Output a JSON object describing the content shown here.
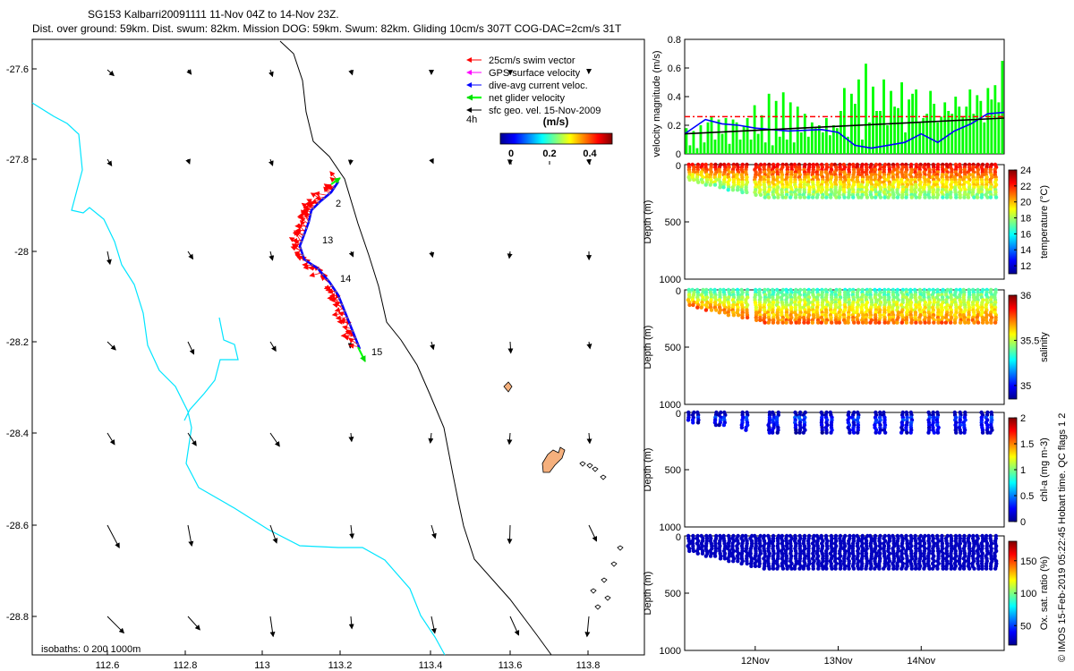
{
  "header": {
    "line1": "SG153 Kalbarri20091111 11-Nov 04Z to 14-Nov 23Z.",
    "line2": "Dist. over ground: 59km. Dist. swum: 82km. Mission DOG: 59km. Swum: 82km. Gliding 10cm/s 307T COG-DAC=2cm/s 31T"
  },
  "colors": {
    "coast": "#00e5ff",
    "shelf_line": "#000000",
    "swim_vector": "#ff0000",
    "gps_velocity": "#ff00ff",
    "dac": "#0000ff",
    "net_velocity": "#00ff00",
    "geo_vel": "#000000",
    "island_fill": "#f5b07d",
    "mean_line": "#ff0000"
  },
  "map": {
    "xticks": [
      "112.6",
      "112.8",
      "113",
      "113.2",
      "113.4",
      "113.6",
      "113.8"
    ],
    "yticks": [
      "-27.6",
      "-27.8",
      "-28",
      "-28.2",
      "-28.4",
      "-28.6",
      "-28.8"
    ],
    "isobaths_label": "isobaths: 0   200  1000m",
    "day_labels": [
      "2",
      "13",
      "14",
      "15"
    ],
    "legend": {
      "items": [
        "25cm/s swim vector",
        "GPS surface velocity",
        "dive-avg current veloc.",
        "net glider velocity",
        "sfc geo. vel. 15-Nov-2009"
      ],
      "colorbar_title": "(m/s)",
      "colorbar_prefix": "4h",
      "colorbar_ticks": [
        "0",
        "0.2",
        "0.4"
      ]
    }
  },
  "side": {
    "copyright": "© IMOS 15-Feb-2019 05:22:45 Hobart time. QC flags 1  2",
    "time_ticks": [
      "12Nov",
      "13Nov",
      "14Nov"
    ]
  },
  "chart_data": [
    {
      "type": "bar",
      "ylabel": "velocity magnitude (m/s)",
      "ylim": [
        0,
        0.8
      ],
      "yticks": [
        "0",
        "0.2",
        "0.4",
        "0.6",
        "0.8"
      ],
      "x_range_days": [
        11.15,
        15.0
      ],
      "series": [
        {
          "name": "",
          "kind": "bars",
          "values": [
            0.18,
            0.06,
            0.16,
            0.04,
            0.2,
            0.08,
            0.22,
            0.26,
            0.1,
            0.24,
            0.14,
            0.25,
            0.07,
            0.24,
            0.22,
            0.1,
            0.19,
            0.25,
            0.1,
            0.34,
            0.14,
            0.27,
            0.08,
            0.42,
            0.06,
            0.37,
            0.12,
            0.43,
            0.1,
            0.36,
            0.08,
            0.33,
            0.15,
            0.28,
            0.12,
            0.22,
            0.18,
            0.2,
            0.15,
            0.25,
            0.13,
            0.2,
            0.18,
            0.3,
            0.46,
            0.12,
            0.42,
            0.35,
            0.52,
            0.1,
            0.63,
            0.22,
            0.47,
            0.3,
            0.3,
            0.52,
            0.2,
            0.44,
            0.33,
            0.32,
            0.5,
            0.15,
            0.38,
            0.42,
            0.45,
            0.22,
            0.25,
            0.28,
            0.44,
            0.35,
            0.22,
            0.26,
            0.36,
            0.3,
            0.28,
            0.4,
            0.33,
            0.26,
            0.33,
            0.45,
            0.28,
            0.41,
            0.37,
            0.22,
            0.46,
            0.38,
            0.48,
            0.36,
            0.65
          ]
        },
        {
          "name": "",
          "kind": "line",
          "x": [
            11.15,
            11.4,
            11.6,
            11.8,
            12.0,
            12.4,
            12.8,
            13.0,
            13.2,
            13.4,
            13.6,
            13.8,
            14.0,
            14.2,
            14.4,
            14.6,
            14.8,
            15.0
          ],
          "values": [
            0.14,
            0.24,
            0.21,
            0.2,
            0.18,
            0.16,
            0.17,
            0.15,
            0.06,
            0.04,
            0.06,
            0.08,
            0.14,
            0.08,
            0.16,
            0.21,
            0.28,
            0.29
          ]
        },
        {
          "name": "",
          "kind": "line",
          "x": [
            11.15,
            15.0
          ],
          "values": [
            0.14,
            0.25
          ]
        },
        {
          "name": "",
          "kind": "dashed",
          "x": [
            11.15,
            15.0
          ],
          "values": [
            0.26,
            0.26
          ]
        }
      ]
    },
    {
      "type": "scatter",
      "ylabel": "Depth (m)",
      "ylim": [
        0,
        1000
      ],
      "yticks": [
        "0",
        "500",
        "1000"
      ],
      "colorbar_label": "temperature (°C)",
      "colorbar_ticks": [
        "24",
        "22",
        "20",
        "18",
        "16",
        "14",
        "12"
      ],
      "colorbar_range": [
        11,
        24
      ],
      "surface_value": 22.5,
      "deep_value": 17.0
    },
    {
      "type": "scatter",
      "ylabel": "Depth (m)",
      "ylim": [
        0,
        1000
      ],
      "yticks": [
        "0",
        "500",
        "1000"
      ],
      "colorbar_label": "salinity",
      "colorbar_ticks": [
        "36",
        "35.5",
        "35"
      ],
      "colorbar_range": [
        34.85,
        36.0
      ],
      "surface_value": 35.35,
      "deep_value": 35.75
    },
    {
      "type": "scatter",
      "ylabel": "Depth (m)",
      "ylim": [
        0,
        1000
      ],
      "yticks": [
        "0",
        "500",
        "1000"
      ],
      "colorbar_label": "chl-a (mg m-3)",
      "colorbar_ticks": [
        "2",
        "1.5",
        "1",
        "0.5",
        "0"
      ],
      "colorbar_range": [
        0,
        2.0
      ],
      "surface_value": 0.4,
      "deep_value": 0.15
    },
    {
      "type": "scatter",
      "ylabel": "Depth (m)",
      "ylim": [
        0,
        1000
      ],
      "yticks": [
        "0",
        "500",
        "1000"
      ],
      "colorbar_label": "Ox. sat. ratio (%)",
      "colorbar_ticks": [
        "150",
        "100",
        "50"
      ],
      "colorbar_range": [
        20,
        180
      ],
      "surface_value": 30,
      "deep_value": 28
    }
  ]
}
